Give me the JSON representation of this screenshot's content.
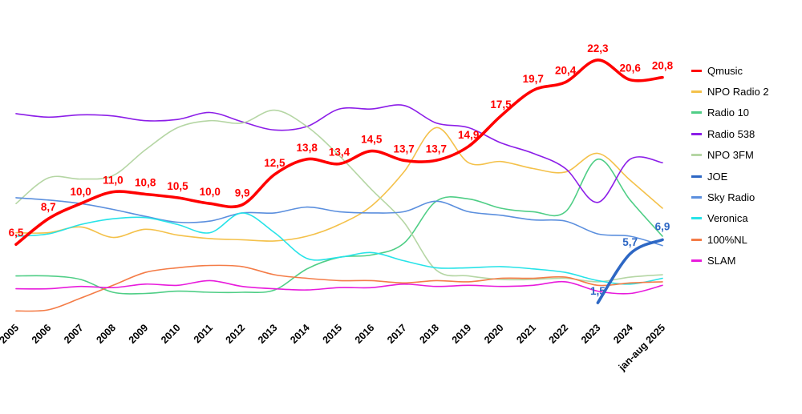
{
  "chart_data": {
    "type": "line",
    "title": "",
    "xlabel": "",
    "ylabel": "",
    "ylim": [
      0,
      24
    ],
    "grid": false,
    "legend_position": "right",
    "categories": [
      "2005",
      "2006",
      "2007",
      "2008",
      "2009",
      "2010",
      "2011",
      "2012",
      "2013",
      "2014",
      "2015",
      "2016",
      "2017",
      "2018",
      "2019",
      "2020",
      "2021",
      "2022",
      "2023",
      "2024",
      "jan-aug 2025"
    ],
    "series": [
      {
        "name": "Qmusic",
        "color": "#ff0000",
        "bold": true,
        "label_color": "#ff0000",
        "values": [
          6.5,
          8.7,
          10.0,
          11.0,
          10.8,
          10.5,
          10.0,
          9.9,
          12.5,
          13.8,
          13.4,
          14.5,
          13.7,
          13.7,
          14.9,
          17.5,
          19.7,
          20.4,
          22.3,
          20.6,
          20.8
        ],
        "labels": [
          "6,5",
          "8,7",
          "10,0",
          "11,0",
          "10,8",
          "10,5",
          "10,0",
          "9,9",
          "12,5",
          "13,8",
          "13,4",
          "14,5",
          "13,7",
          "13,7",
          "14,9",
          "17,5",
          "19,7",
          "20,4",
          "22,3",
          "20,6",
          "20,8"
        ]
      },
      {
        "name": "NPO Radio 2",
        "color": "#f4c14a",
        "values": [
          7.5,
          7.5,
          8.0,
          7.1,
          7.8,
          7.3,
          7.0,
          6.9,
          6.8,
          7.2,
          8.2,
          9.8,
          12.7,
          16.5,
          13.5,
          13.6,
          13.0,
          12.7,
          14.3,
          12.0,
          9.6
        ]
      },
      {
        "name": "Radio 10",
        "color": "#4fce86",
        "values": [
          3.8,
          3.8,
          3.5,
          2.4,
          2.3,
          2.5,
          2.4,
          2.4,
          2.6,
          4.4,
          5.4,
          5.6,
          6.6,
          10.2,
          10.4,
          9.6,
          9.3,
          9.3,
          13.8,
          10.3,
          7.2
        ]
      },
      {
        "name": "Radio 538",
        "color": "#8c1ee8",
        "values": [
          17.7,
          17.4,
          17.6,
          17.5,
          17.1,
          17.2,
          17.8,
          17.0,
          16.3,
          16.6,
          18.1,
          18.1,
          18.4,
          16.9,
          16.5,
          15.2,
          14.3,
          13.0,
          10.1,
          13.8,
          13.5
        ]
      },
      {
        "name": "NPO 3FM",
        "color": "#b5d6a4",
        "values": [
          10.0,
          12.2,
          12.1,
          12.4,
          14.6,
          16.5,
          17.1,
          16.9,
          18.0,
          16.6,
          14.1,
          11.2,
          8.4,
          4.3,
          3.8,
          3.5,
          3.5,
          3.6,
          3.3,
          3.7,
          3.9
        ]
      },
      {
        "name": "JOE",
        "color": "#2d67c4",
        "bold": true,
        "label_color": "#2d67c4",
        "values": [
          null,
          null,
          null,
          null,
          null,
          null,
          null,
          null,
          null,
          null,
          null,
          null,
          null,
          null,
          null,
          null,
          null,
          null,
          1.5,
          5.7,
          6.9
        ],
        "labels": [
          null,
          null,
          null,
          null,
          null,
          null,
          null,
          null,
          null,
          null,
          null,
          null,
          null,
          null,
          null,
          null,
          null,
          null,
          "1,5",
          "5,7",
          "6,9"
        ]
      },
      {
        "name": "Sky Radio",
        "color": "#5b8fde",
        "values": [
          10.5,
          10.3,
          10.0,
          9.5,
          8.9,
          8.4,
          8.5,
          9.2,
          9.2,
          9.7,
          9.3,
          9.2,
          9.3,
          10.2,
          9.3,
          9.0,
          8.6,
          8.5,
          7.4,
          7.2,
          6.4
        ]
      },
      {
        "name": "Veronica",
        "color": "#27e3e8",
        "values": [
          7.2,
          7.4,
          8.2,
          8.7,
          8.8,
          8.2,
          7.5,
          9.2,
          7.5,
          5.3,
          5.4,
          5.8,
          5.1,
          4.5,
          4.5,
          4.6,
          4.4,
          4.1,
          3.4,
          3.1,
          3.6
        ]
      },
      {
        "name": "100%NL",
        "color": "#f47c47",
        "values": [
          0.8,
          0.9,
          1.9,
          3.0,
          4.1,
          4.5,
          4.7,
          4.6,
          3.9,
          3.6,
          3.4,
          3.4,
          3.2,
          3.4,
          3.3,
          3.6,
          3.6,
          3.7,
          3.0,
          3.2,
          3.3
        ]
      },
      {
        "name": "SLAM",
        "color": "#e81bdc",
        "values": [
          2.7,
          2.7,
          2.9,
          2.8,
          3.1,
          3.0,
          3.4,
          2.9,
          2.7,
          2.6,
          2.8,
          2.8,
          3.1,
          2.9,
          3.0,
          2.9,
          3.0,
          3.3,
          2.5,
          2.3,
          3.0
        ]
      }
    ]
  }
}
